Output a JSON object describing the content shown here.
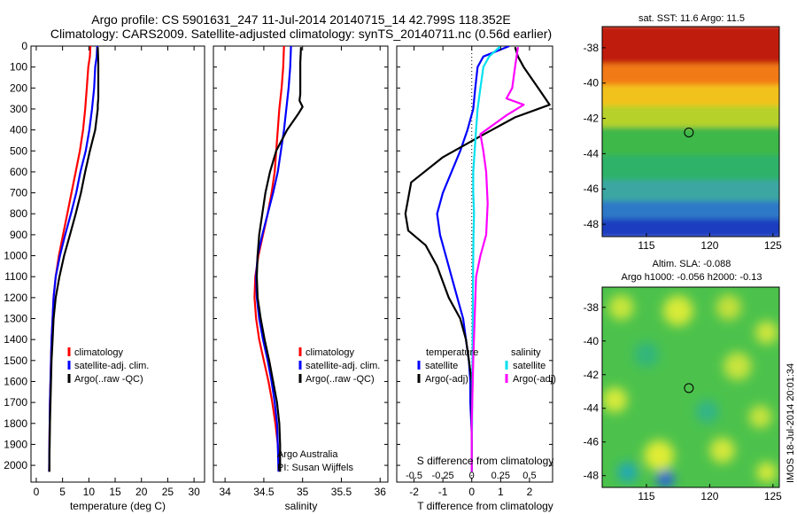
{
  "header": {
    "line1": "Argo profile: CS 5901631_247 11-Jul-2014 20140715_14 42.799S 118.352E",
    "line2": "Climatology: CARS2009. Satellite-adjusted climatology: synTS_20140711.nc (0.56d earlier)"
  },
  "watermark": "IMOS 18-Jul-2014 20:01:34",
  "colors": {
    "climatology": "#ff0000",
    "satellite": "#0000ff",
    "argo": "#000000",
    "sal_satellite": "#00e0f0",
    "sal_argo": "#ff00ff"
  },
  "chart_data": [
    {
      "type": "line",
      "panel": "temperature",
      "xlabel": "temperature (deg C)",
      "ylabel": "",
      "xlim": [
        -1,
        32
      ],
      "ylim": [
        2080,
        0
      ],
      "xticks": [
        0,
        5,
        10,
        15,
        20,
        25,
        30
      ],
      "yticks": [
        0,
        100,
        200,
        300,
        400,
        500,
        600,
        700,
        800,
        900,
        1000,
        1100,
        1200,
        1300,
        1400,
        1500,
        1600,
        1700,
        1800,
        1900,
        2000
      ],
      "legend": [
        "climatology",
        "satellite-adj. clim.",
        "Argo(..raw -QC)"
      ],
      "legend_placement": "lower-middle",
      "series": [
        {
          "name": "climatology",
          "color": "#ff0000",
          "x": [
            10.3,
            10.2,
            9.9,
            9.6,
            9.3,
            8.9,
            8.3,
            7.5,
            6.7,
            5.9,
            5.1,
            4.3,
            3.7,
            3.3,
            3.1,
            2.9,
            2.8,
            2.7,
            2.6,
            2.55,
            2.5,
            2.45
          ],
          "y": [
            0,
            50,
            100,
            200,
            300,
            400,
            500,
            600,
            700,
            800,
            900,
            1000,
            1100,
            1200,
            1300,
            1400,
            1500,
            1600,
            1700,
            1800,
            1900,
            2030
          ]
        },
        {
          "name": "satellite-adj. clim.",
          "color": "#0000ff",
          "x": [
            11.6,
            11.5,
            11.2,
            11.0,
            10.6,
            10.1,
            9.4,
            8.4,
            7.6,
            6.6,
            5.5,
            4.5,
            3.7,
            3.3,
            3.1,
            2.9,
            2.8,
            2.7,
            2.6,
            2.55,
            2.5,
            2.45
          ],
          "y": [
            0,
            50,
            100,
            200,
            300,
            400,
            500,
            600,
            700,
            800,
            900,
            1000,
            1100,
            1200,
            1300,
            1400,
            1500,
            1600,
            1700,
            1800,
            1900,
            2030
          ]
        },
        {
          "name": "Argo(..raw -QC)",
          "color": "#000000",
          "x": [
            11.7,
            11.8,
            11.8,
            11.8,
            11.7,
            11.7,
            11.2,
            10.2,
            9.3,
            8.5,
            7.5,
            6.4,
            5.3,
            4.4,
            3.7,
            3.3,
            3.1,
            2.9,
            2.8,
            2.7,
            2.6,
            2.55,
            2.5,
            2.5
          ],
          "y": [
            5,
            80,
            150,
            250,
            280,
            300,
            400,
            500,
            600,
            700,
            800,
            900,
            1000,
            1100,
            1200,
            1300,
            1400,
            1500,
            1600,
            1700,
            1800,
            1900,
            1950,
            2030
          ]
        }
      ]
    },
    {
      "type": "line",
      "panel": "salinity",
      "xlabel": "salinity",
      "ylabel": "",
      "xlim": [
        33.85,
        36.1
      ],
      "ylim": [
        2080,
        0
      ],
      "xticks": [
        34,
        34.5,
        35,
        35.5,
        36
      ],
      "legend": [
        "climatology",
        "satellite-adj. clim.",
        "Argo(..raw -QC)"
      ],
      "legend_placement": "lower-right",
      "annotation": [
        "Argo Australia",
        "PI: Susan Wijffels"
      ],
      "series": [
        {
          "name": "climatology",
          "color": "#ff0000",
          "x": [
            34.76,
            34.75,
            34.73,
            34.7,
            34.68,
            34.66,
            34.64,
            34.6,
            34.55,
            34.49,
            34.43,
            34.39,
            34.38,
            34.4,
            34.44,
            34.5,
            34.56,
            34.61,
            34.65,
            34.68,
            34.69,
            34.7
          ],
          "y": [
            0,
            100,
            200,
            300,
            400,
            500,
            600,
            700,
            800,
            900,
            1000,
            1100,
            1200,
            1300,
            1400,
            1500,
            1600,
            1700,
            1800,
            1900,
            1950,
            2030
          ]
        },
        {
          "name": "satellite-adj. clim.",
          "color": "#0000ff",
          "x": [
            34.85,
            34.84,
            34.82,
            34.79,
            34.76,
            34.72,
            34.68,
            34.62,
            34.55,
            34.48,
            34.42,
            34.4,
            34.41,
            34.44,
            34.49,
            34.55,
            34.6,
            34.64,
            34.67,
            34.68,
            34.69
          ],
          "y": [
            0,
            100,
            200,
            300,
            400,
            500,
            600,
            700,
            800,
            900,
            1000,
            1100,
            1200,
            1300,
            1400,
            1500,
            1600,
            1700,
            1800,
            1900,
            2030
          ]
        },
        {
          "name": "Argo(..raw -QC)",
          "color": "#000000",
          "x": [
            34.98,
            34.97,
            34.97,
            34.97,
            34.96,
            35.0,
            34.95,
            34.8,
            34.66,
            34.58,
            34.52,
            34.48,
            34.44,
            34.42,
            34.41,
            34.42,
            34.46,
            34.51,
            34.57,
            34.62,
            34.67,
            34.7,
            34.71,
            34.71
          ],
          "y": [
            5,
            80,
            150,
            230,
            260,
            290,
            320,
            400,
            500,
            600,
            700,
            800,
            900,
            1000,
            1100,
            1200,
            1300,
            1400,
            1500,
            1600,
            1700,
            1800,
            1900,
            2030
          ]
        }
      ]
    },
    {
      "type": "line",
      "panel": "differences",
      "xlabel": "T difference from climatology",
      "xlabel_top": "S difference from climatology",
      "xlim": [
        -2.6,
        2.8
      ],
      "xticks": [
        -2,
        -1,
        0,
        1,
        2
      ],
      "s_xticks": [
        "-0.5",
        "-0.25",
        "0",
        "0.25",
        "0.5"
      ],
      "s_tick_x_in_T_units": [
        -2,
        -1,
        0,
        1,
        2
      ],
      "ylim": [
        2080,
        0
      ],
      "legend_headers": [
        "temperature",
        "salinity"
      ],
      "legend": [
        "satellite",
        "Argo(-adj)",
        "satellite",
        "Argo(-adj)"
      ],
      "legend_placement": "lower-middle",
      "series": [
        {
          "name": "satellite",
          "group": "temperature",
          "color": "#0000ff",
          "x": [
            1.3,
            0.4,
            0.2,
            0.12,
            0.05,
            -0.15,
            -0.4,
            -0.7,
            -1.0,
            -1.2,
            -1.1,
            -0.9,
            -0.7,
            -0.5,
            -0.3,
            -0.2,
            -0.1,
            -0.05,
            -0.05,
            0.0,
            0.0
          ],
          "y": [
            0,
            50,
            100,
            200,
            300,
            400,
            500,
            600,
            700,
            800,
            900,
            1000,
            1100,
            1200,
            1300,
            1400,
            1500,
            1600,
            1700,
            1850,
            2030
          ]
        },
        {
          "name": "Argo(-adj)",
          "group": "temperature",
          "color": "#000000",
          "x": [
            1.5,
            1.6,
            1.8,
            2.3,
            2.7,
            1.5,
            0.3,
            -1.0,
            -2.1,
            -2.3,
            -2.2,
            -1.6,
            -1.2,
            -0.8,
            -0.4,
            -0.2,
            -0.1,
            0.0,
            0.0,
            0.0,
            0.0
          ],
          "y": [
            5,
            50,
            100,
            200,
            280,
            340,
            430,
            530,
            650,
            800,
            880,
            950,
            1050,
            1200,
            1300,
            1400,
            1500,
            1600,
            1700,
            1850,
            2030
          ]
        },
        {
          "name": "satellite",
          "group": "salinity",
          "color": "#00e0f0",
          "x": [
            1.0,
            0.6,
            0.4,
            0.3,
            0.2,
            0.15,
            0.1,
            0.05,
            0.05,
            0.08,
            0.06,
            0.05,
            0.04,
            0.03,
            0.02,
            0.01,
            0.0,
            0.0
          ],
          "y": [
            0,
            50,
            100,
            200,
            300,
            400,
            500,
            600,
            700,
            800,
            900,
            1000,
            1200,
            1400,
            1600,
            1800,
            1900,
            2030
          ]
        },
        {
          "name": "Argo(-adj)",
          "group": "salinity",
          "color": "#ff00ff",
          "x": [
            1.6,
            1.5,
            1.4,
            1.2,
            1.8,
            1.2,
            0.3,
            0.4,
            0.5,
            0.55,
            0.5,
            0.3,
            0.15,
            0.1,
            0.05,
            0.0,
            0.0
          ],
          "y": [
            5,
            100,
            200,
            250,
            280,
            330,
            420,
            500,
            600,
            750,
            900,
            1000,
            1100,
            1300,
            1500,
            1800,
            2030
          ]
        }
      ]
    },
    {
      "type": "heatmap",
      "panel": "sst_map",
      "title": "sat. SST: 11.6 Argo: 11.5",
      "xticks": [
        115,
        120,
        125
      ],
      "yticks": [
        -38,
        -40,
        -42,
        -44,
        -46,
        -48
      ],
      "xlim": [
        111.5,
        125.5
      ],
      "ylim": [
        -48.7,
        -36.8
      ],
      "marker": {
        "lon": 118.352,
        "lat": -42.799
      },
      "bands": [
        {
          "lat_top": -36.8,
          "lat_bottom": -39.0,
          "color": "#c01c0c"
        },
        {
          "lat_top": -39.0,
          "lat_bottom": -40.2,
          "color": "#f27a14"
        },
        {
          "lat_top": -40.2,
          "lat_bottom": -41.4,
          "color": "#f2c21a"
        },
        {
          "lat_top": -41.4,
          "lat_bottom": -42.6,
          "color": "#b6d22c"
        },
        {
          "lat_top": -42.6,
          "lat_bottom": -44.2,
          "color": "#3cb84a"
        },
        {
          "lat_top": -44.2,
          "lat_bottom": -45.6,
          "color": "#2eb26a"
        },
        {
          "lat_top": -45.6,
          "lat_bottom": -46.8,
          "color": "#3aa6a2"
        },
        {
          "lat_top": -46.8,
          "lat_bottom": -47.8,
          "color": "#2d78c8"
        },
        {
          "lat_top": -47.8,
          "lat_bottom": -48.7,
          "color": "#1a3cc0"
        }
      ]
    },
    {
      "type": "heatmap",
      "panel": "sla_map",
      "title_line1": "Altim. SLA: -0.088",
      "title_line2": "Argo h1000: -0.056 h2000: -0.13",
      "xticks": [
        115,
        120,
        125
      ],
      "yticks": [
        -38,
        -40,
        -42,
        -44,
        -46,
        -48
      ],
      "xlim": [
        111.5,
        125.5
      ],
      "ylim": [
        -48.7,
        -36.8
      ],
      "marker": {
        "lon": 118.352,
        "lat": -42.799
      },
      "background": "#4cc24c",
      "blobs": [
        {
          "lon": 113.0,
          "lat": -38.0,
          "r": 1.0,
          "color": "#c8e63a"
        },
        {
          "lon": 117.5,
          "lat": -38.2,
          "r": 1.2,
          "color": "#d8ea38"
        },
        {
          "lon": 121.5,
          "lat": -38.0,
          "r": 1.0,
          "color": "#c4e03a"
        },
        {
          "lon": 124.5,
          "lat": -39.5,
          "r": 0.9,
          "color": "#d0e63c"
        },
        {
          "lon": 115.0,
          "lat": -40.8,
          "r": 1.0,
          "color": "#30b67c"
        },
        {
          "lon": 122.2,
          "lat": -41.5,
          "r": 1.1,
          "color": "#c8e43c"
        },
        {
          "lon": 112.5,
          "lat": -43.5,
          "r": 1.0,
          "color": "#d6ea3a"
        },
        {
          "lon": 119.8,
          "lat": -44.2,
          "r": 0.9,
          "color": "#32b488"
        },
        {
          "lon": 124.0,
          "lat": -44.5,
          "r": 0.9,
          "color": "#c8e43e"
        },
        {
          "lon": 116.0,
          "lat": -46.8,
          "r": 1.2,
          "color": "#e0ec36"
        },
        {
          "lon": 121.0,
          "lat": -46.5,
          "r": 1.0,
          "color": "#d4e83a"
        },
        {
          "lon": 113.5,
          "lat": -47.8,
          "r": 0.8,
          "color": "#22a8b4"
        },
        {
          "lon": 116.5,
          "lat": -48.2,
          "r": 0.7,
          "color": "#2c64d8"
        },
        {
          "lon": 124.5,
          "lat": -47.8,
          "r": 0.8,
          "color": "#d8ea3a"
        }
      ]
    }
  ]
}
